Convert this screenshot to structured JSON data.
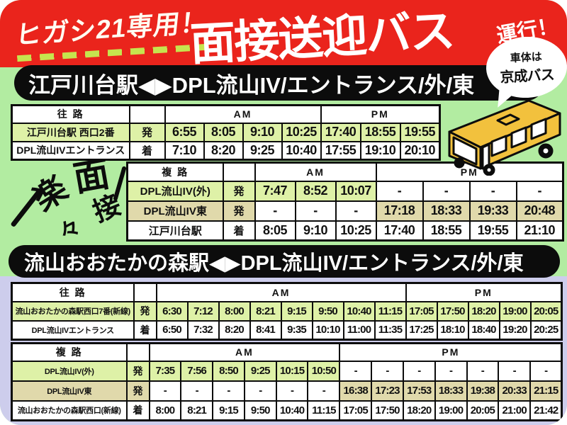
{
  "poster": {
    "top_badge": "ヒガシ21専用！",
    "main_title": "面接送迎バス",
    "title_suffix": "運行！",
    "bubble_line1": "車体は",
    "bubble_line2": "京成バス",
    "decoration_chars": [
      "楽",
      "々",
      "面",
      "接"
    ]
  },
  "sections": [
    {
      "banner": "江戸川台駅◀▶DPL流山IV/エントランス/外/東"
    },
    {
      "banner": "流山おおたかの森駅◀▶DPL流山IV/エントランス/外/東"
    }
  ],
  "table_labels": {
    "am": "AM",
    "pm": "PM"
  },
  "tables": [
    {
      "name": "edogawadai-outbound",
      "header": "往 路",
      "am_cols": 4,
      "pm_cols": 3,
      "rows": [
        {
          "label": "江戸川台駅 西口2番",
          "mark": "発",
          "style": "green",
          "times": [
            "6:55",
            "8:05",
            "9:10",
            "10:25",
            "17:40",
            "18:55",
            "19:55"
          ]
        },
        {
          "label": "DPL流山IVエントランス",
          "mark": "着",
          "style": "white",
          "times": [
            "7:10",
            "8:20",
            "9:25",
            "10:40",
            "17:55",
            "19:10",
            "20:10"
          ]
        }
      ]
    },
    {
      "name": "edogawadai-return",
      "header": "複 路",
      "am_cols": 3,
      "pm_cols": 4,
      "rows": [
        {
          "label": "DPL流山IV(外)",
          "mark": "発",
          "style": "green",
          "times": [
            "7:47",
            "8:52",
            "10:07",
            "-",
            "-",
            "-",
            "-"
          ]
        },
        {
          "label": "DPL流山IV東",
          "mark": "発",
          "style": "beige",
          "times": [
            "-",
            "-",
            "-",
            "17:18",
            "18:33",
            "19:33",
            "20:48"
          ]
        },
        {
          "label": "江戸川台駅",
          "mark": "着",
          "style": "white",
          "times": [
            "8:05",
            "9:10",
            "10:25",
            "17:40",
            "18:55",
            "19:55",
            "21:10"
          ]
        }
      ]
    },
    {
      "name": "otakanomori-outbound",
      "header": "往 路",
      "am_cols": 8,
      "pm_cols": 5,
      "rows": [
        {
          "label": "流山おおたかの森駅西口7番(新線)",
          "mark": "発",
          "style": "green",
          "times": [
            "6:30",
            "7:12",
            "8:00",
            "8:21",
            "9:15",
            "9:50",
            "10:40",
            "11:15",
            "17:05",
            "17:50",
            "18:20",
            "19:00",
            "20:05"
          ]
        },
        {
          "label": "DPL流山IVエントランス",
          "mark": "着",
          "style": "white",
          "times": [
            "6:50",
            "7:32",
            "8:20",
            "8:41",
            "9:35",
            "10:10",
            "11:00",
            "11:35",
            "17:25",
            "18:10",
            "18:40",
            "19:20",
            "20:25"
          ]
        }
      ]
    },
    {
      "name": "otakanomori-return",
      "header": "複 路",
      "am_cols": 6,
      "pm_cols": 7,
      "rows": [
        {
          "label": "DPL流山IV(外)",
          "mark": "発",
          "style": "green",
          "times": [
            "7:35",
            "7:56",
            "8:50",
            "9:25",
            "10:15",
            "10:50",
            "-",
            "-",
            "-",
            "-",
            "-",
            "-",
            "-"
          ]
        },
        {
          "label": "DPL流山IV東",
          "mark": "発",
          "style": "beige",
          "times": [
            "-",
            "-",
            "-",
            "-",
            "-",
            "-",
            "16:38",
            "17:23",
            "17:53",
            "18:33",
            "19:38",
            "20:33",
            "21:15"
          ]
        },
        {
          "label": "流山おおたかの森駅西口(新線)",
          "mark": "着",
          "style": "white",
          "times": [
            "8:00",
            "8:21",
            "9:15",
            "9:50",
            "10:40",
            "11:15",
            "17:05",
            "17:50",
            "18:20",
            "19:00",
            "20:05",
            "21:00",
            "21:42"
          ]
        }
      ]
    }
  ],
  "colors": {
    "header_red": "#ea241c",
    "bg_green": "#b2eca1",
    "bg_purple": "#cdcdec",
    "row_green": "#def1a7",
    "row_beige": "#e0d9ab",
    "dash_yellow_green": "#c6e44e",
    "bus_yellow": "#f2c13d",
    "banner_black": "#0c0c0c"
  }
}
